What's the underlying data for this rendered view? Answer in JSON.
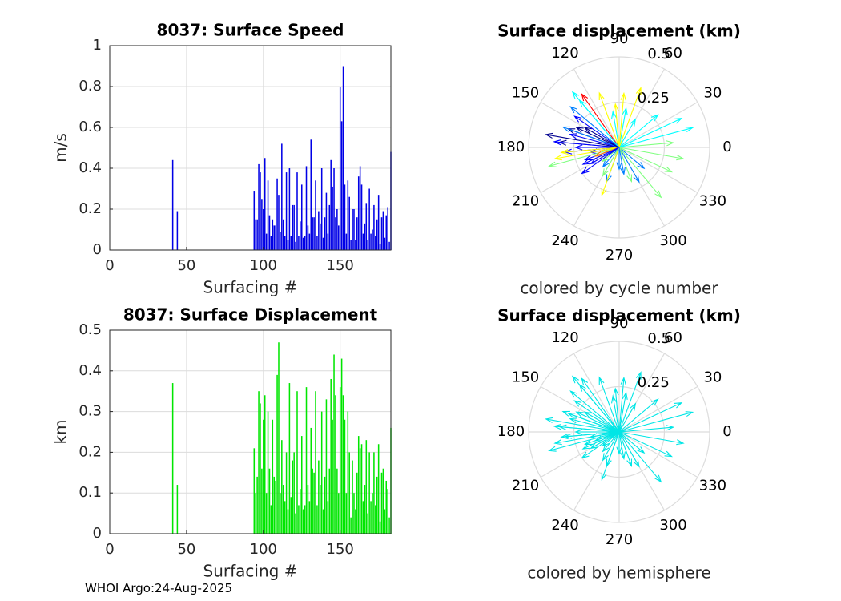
{
  "figure": {
    "footer": "WHOI Argo:24-Aug-2025"
  },
  "chart_data": [
    {
      "type": "bar",
      "title": "8037: Surface Speed",
      "xlabel": "Surfacing #",
      "ylabel": "m/s",
      "xlim": [
        0,
        183
      ],
      "ylim": [
        0,
        1
      ],
      "xticks": [
        0,
        50,
        100,
        150
      ],
      "yticks": [
        0,
        0.2,
        0.4,
        0.6,
        0.8,
        1
      ],
      "ytick_labels": [
        "0",
        "0.2",
        "0.4",
        "0.6",
        "0.8",
        "1"
      ],
      "grid": true,
      "color": "#0000e6",
      "x": [
        41,
        44,
        94,
        95,
        96,
        97,
        98,
        99,
        100,
        101,
        102,
        103,
        104,
        105,
        106,
        107,
        108,
        109,
        110,
        111,
        112,
        113,
        114,
        115,
        116,
        117,
        118,
        119,
        120,
        121,
        122,
        123,
        124,
        125,
        126,
        127,
        128,
        129,
        130,
        131,
        132,
        133,
        134,
        135,
        136,
        137,
        138,
        139,
        140,
        141,
        142,
        143,
        144,
        145,
        146,
        147,
        148,
        149,
        150,
        151,
        152,
        153,
        154,
        155,
        156,
        157,
        158,
        159,
        160,
        161,
        162,
        163,
        164,
        165,
        166,
        167,
        168,
        169,
        170,
        171,
        172,
        173,
        174,
        175,
        176,
        177,
        178,
        179,
        180,
        181,
        182,
        183
      ],
      "values": [
        0.44,
        0.19,
        0.29,
        0.15,
        0.15,
        0.42,
        0.38,
        0.25,
        0.2,
        0.45,
        0.08,
        0.34,
        0.17,
        0.07,
        0.15,
        0.12,
        0.12,
        0.35,
        0.27,
        0.09,
        0.52,
        0.15,
        0.07,
        0.38,
        0.05,
        0.4,
        0.07,
        0.22,
        0.22,
        0.04,
        0.38,
        0.07,
        0.14,
        0.32,
        0.06,
        0.07,
        0.41,
        0.12,
        0.08,
        0.54,
        0.16,
        0.16,
        0.34,
        0.07,
        0.19,
        0.13,
        0.4,
        0.06,
        0.16,
        0.28,
        0.08,
        0.22,
        0.44,
        0.31,
        0.4,
        0.16,
        0.2,
        0.12,
        0.8,
        0.63,
        0.9,
        0.32,
        0.08,
        0.34,
        0.26,
        0.05,
        0.2,
        0.2,
        0.05,
        0.16,
        0.36,
        0.41,
        0.32,
        0.08,
        0.13,
        0.23,
        0.05,
        0.3,
        0.08,
        0.1,
        0.22,
        0.07,
        0.15,
        0.27,
        0.03,
        0.16,
        0.19,
        0.06,
        0.17,
        0.21,
        0.04,
        0.48
      ]
    },
    {
      "type": "bar",
      "title": "8037: Surface Displacement",
      "xlabel": "Surfacing #",
      "ylabel": "km",
      "xlim": [
        0,
        183
      ],
      "ylim": [
        0,
        0.5
      ],
      "xticks": [
        0,
        50,
        100,
        150
      ],
      "yticks": [
        0,
        0.1,
        0.2,
        0.3,
        0.4,
        0.5
      ],
      "ytick_labels": [
        "0",
        "0.1",
        "0.2",
        "0.3",
        "0.4",
        "0.5"
      ],
      "grid": true,
      "color": "#00e600",
      "x": [
        41,
        44,
        94,
        95,
        96,
        97,
        98,
        99,
        100,
        101,
        102,
        103,
        104,
        105,
        106,
        107,
        108,
        109,
        110,
        111,
        112,
        113,
        114,
        115,
        116,
        117,
        118,
        119,
        120,
        121,
        122,
        123,
        124,
        125,
        126,
        127,
        128,
        129,
        130,
        131,
        132,
        133,
        134,
        135,
        136,
        137,
        138,
        139,
        140,
        141,
        142,
        143,
        144,
        145,
        146,
        147,
        148,
        149,
        150,
        151,
        152,
        153,
        154,
        155,
        156,
        157,
        158,
        159,
        160,
        161,
        162,
        163,
        164,
        165,
        166,
        167,
        168,
        169,
        170,
        171,
        172,
        173,
        174,
        175,
        176,
        177,
        178,
        179,
        180,
        181,
        182,
        183
      ],
      "values": [
        0.37,
        0.12,
        0.21,
        0.1,
        0.14,
        0.35,
        0.32,
        0.16,
        0.28,
        0.34,
        0.1,
        0.3,
        0.16,
        0.07,
        0.28,
        0.14,
        0.13,
        0.39,
        0.47,
        0.1,
        0.23,
        0.12,
        0.08,
        0.2,
        0.06,
        0.37,
        0.09,
        0.18,
        0.2,
        0.05,
        0.35,
        0.07,
        0.11,
        0.24,
        0.06,
        0.07,
        0.36,
        0.12,
        0.08,
        0.26,
        0.16,
        0.15,
        0.35,
        0.07,
        0.18,
        0.12,
        0.3,
        0.06,
        0.14,
        0.33,
        0.08,
        0.16,
        0.38,
        0.28,
        0.44,
        0.34,
        0.16,
        0.1,
        0.36,
        0.43,
        0.34,
        0.28,
        0.1,
        0.3,
        0.2,
        0.04,
        0.18,
        0.1,
        0.06,
        0.15,
        0.24,
        0.21,
        0.22,
        0.08,
        0.12,
        0.23,
        0.05,
        0.2,
        0.08,
        0.1,
        0.2,
        0.07,
        0.14,
        0.22,
        0.03,
        0.15,
        0.16,
        0.06,
        0.13,
        0.11,
        0.04,
        0.26
      ]
    },
    {
      "type": "polar-compass",
      "title": "Surface displacement (km)",
      "caption": "colored by cycle number",
      "rlim": [
        0,
        0.5
      ],
      "rticks": [
        0.25,
        0.5
      ],
      "rtick_labels": [
        "0.25",
        "0.5"
      ],
      "angle_ticks": [
        0,
        30,
        60,
        90,
        120,
        150,
        180,
        210,
        240,
        270,
        300,
        330
      ],
      "angle_labels": [
        "0",
        "30",
        "60",
        "90",
        "120",
        "150",
        "180",
        "210",
        "240",
        "270",
        "300",
        "330"
      ],
      "colormap": [
        "#00008f",
        "#0000ff",
        "#0080ff",
        "#00ffff",
        "#80ff80",
        "#ffff00",
        "#ff8000",
        "#ff0000"
      ],
      "vectors": [
        {
          "angle": 170,
          "r": 0.41,
          "c": 0.0
        },
        {
          "angle": 160,
          "r": 0.3,
          "c": 0.02
        },
        {
          "angle": 175,
          "r": 0.33,
          "c": 0.04
        },
        {
          "angle": 150,
          "r": 0.22,
          "c": 0.06
        },
        {
          "angle": 200,
          "r": 0.2,
          "c": 0.08
        },
        {
          "angle": 185,
          "r": 0.3,
          "c": 0.1
        },
        {
          "angle": 165,
          "r": 0.28,
          "c": 0.12
        },
        {
          "angle": 180,
          "r": 0.24,
          "c": 0.14
        },
        {
          "angle": 145,
          "r": 0.3,
          "c": 0.16
        },
        {
          "angle": 190,
          "r": 0.16,
          "c": 0.18
        },
        {
          "angle": 210,
          "r": 0.18,
          "c": 0.2
        },
        {
          "angle": 230,
          "r": 0.14,
          "c": 0.22
        },
        {
          "angle": 250,
          "r": 0.2,
          "c": 0.24
        },
        {
          "angle": 270,
          "r": 0.12,
          "c": 0.26
        },
        {
          "angle": 300,
          "r": 0.22,
          "c": 0.28
        },
        {
          "angle": 320,
          "r": 0.18,
          "c": 0.3
        },
        {
          "angle": 140,
          "r": 0.35,
          "c": 0.32
        },
        {
          "angle": 160,
          "r": 0.33,
          "c": 0.34
        },
        {
          "angle": 130,
          "r": 0.34,
          "c": 0.36
        },
        {
          "angle": 100,
          "r": 0.2,
          "c": 0.38
        },
        {
          "angle": 80,
          "r": 0.22,
          "c": 0.4
        },
        {
          "angle": 60,
          "r": 0.18,
          "c": 0.42
        },
        {
          "angle": 40,
          "r": 0.28,
          "c": 0.44
        },
        {
          "angle": 25,
          "r": 0.38,
          "c": 0.46
        },
        {
          "angle": 15,
          "r": 0.42,
          "c": 0.48
        },
        {
          "angle": 5,
          "r": 0.3,
          "c": 0.5
        },
        {
          "angle": 350,
          "r": 0.36,
          "c": 0.52
        },
        {
          "angle": 335,
          "r": 0.32,
          "c": 0.54
        },
        {
          "angle": 310,
          "r": 0.36,
          "c": 0.56
        },
        {
          "angle": 290,
          "r": 0.2,
          "c": 0.58
        },
        {
          "angle": 240,
          "r": 0.18,
          "c": 0.6
        },
        {
          "angle": 220,
          "r": 0.12,
          "c": 0.62
        },
        {
          "angle": 195,
          "r": 0.4,
          "c": 0.64
        },
        {
          "angle": 190,
          "r": 0.36,
          "c": 0.66
        },
        {
          "angle": 185,
          "r": 0.32,
          "c": 0.68
        },
        {
          "angle": 70,
          "r": 0.35,
          "c": 0.7
        },
        {
          "angle": 85,
          "r": 0.3,
          "c": 0.72
        },
        {
          "angle": 95,
          "r": 0.24,
          "c": 0.74
        },
        {
          "angle": 110,
          "r": 0.32,
          "c": 0.76
        },
        {
          "angle": 250,
          "r": 0.28,
          "c": 0.78
        },
        {
          "angle": 200,
          "r": 0.14,
          "c": 0.8
        },
        {
          "angle": 125,
          "r": 0.36,
          "c": 0.96
        },
        {
          "angle": 175,
          "r": 0.36,
          "c": 0.08
        },
        {
          "angle": 155,
          "r": 0.26,
          "c": 0.03
        },
        {
          "angle": 205,
          "r": 0.22,
          "c": 0.15
        },
        {
          "angle": 215,
          "r": 0.25,
          "c": 0.2
        },
        {
          "angle": 280,
          "r": 0.15,
          "c": 0.25
        },
        {
          "angle": 130,
          "r": 0.4,
          "c": 0.38
        }
      ]
    },
    {
      "type": "polar-compass",
      "title": "Surface displacement (km)",
      "caption": "colored by hemisphere",
      "rlim": [
        0,
        0.5
      ],
      "rticks": [
        0.25,
        0.5
      ],
      "rtick_labels": [
        "0.25",
        "0.5"
      ],
      "angle_ticks": [
        0,
        30,
        60,
        90,
        120,
        150,
        180,
        210,
        240,
        270,
        300,
        330
      ],
      "angle_labels": [
        "0",
        "30",
        "60",
        "90",
        "120",
        "150",
        "180",
        "210",
        "240",
        "270",
        "300",
        "330"
      ],
      "color": "#00e6e6",
      "vectors": [
        {
          "angle": 170,
          "r": 0.41
        },
        {
          "angle": 160,
          "r": 0.3
        },
        {
          "angle": 175,
          "r": 0.33
        },
        {
          "angle": 150,
          "r": 0.22
        },
        {
          "angle": 200,
          "r": 0.2
        },
        {
          "angle": 185,
          "r": 0.3
        },
        {
          "angle": 165,
          "r": 0.28
        },
        {
          "angle": 180,
          "r": 0.24
        },
        {
          "angle": 145,
          "r": 0.3
        },
        {
          "angle": 190,
          "r": 0.16
        },
        {
          "angle": 210,
          "r": 0.18
        },
        {
          "angle": 230,
          "r": 0.14
        },
        {
          "angle": 250,
          "r": 0.2
        },
        {
          "angle": 270,
          "r": 0.12
        },
        {
          "angle": 300,
          "r": 0.22
        },
        {
          "angle": 320,
          "r": 0.18
        },
        {
          "angle": 140,
          "r": 0.35
        },
        {
          "angle": 160,
          "r": 0.33
        },
        {
          "angle": 130,
          "r": 0.34
        },
        {
          "angle": 100,
          "r": 0.2
        },
        {
          "angle": 80,
          "r": 0.22
        },
        {
          "angle": 60,
          "r": 0.18
        },
        {
          "angle": 40,
          "r": 0.28
        },
        {
          "angle": 25,
          "r": 0.38
        },
        {
          "angle": 15,
          "r": 0.42
        },
        {
          "angle": 5,
          "r": 0.3
        },
        {
          "angle": 350,
          "r": 0.36
        },
        {
          "angle": 335,
          "r": 0.32
        },
        {
          "angle": 310,
          "r": 0.36
        },
        {
          "angle": 290,
          "r": 0.2
        },
        {
          "angle": 240,
          "r": 0.18
        },
        {
          "angle": 220,
          "r": 0.12
        },
        {
          "angle": 195,
          "r": 0.4
        },
        {
          "angle": 190,
          "r": 0.36
        },
        {
          "angle": 185,
          "r": 0.32
        },
        {
          "angle": 70,
          "r": 0.35
        },
        {
          "angle": 85,
          "r": 0.3
        },
        {
          "angle": 95,
          "r": 0.24
        },
        {
          "angle": 110,
          "r": 0.32
        },
        {
          "angle": 250,
          "r": 0.28
        },
        {
          "angle": 200,
          "r": 0.14
        },
        {
          "angle": 125,
          "r": 0.36
        },
        {
          "angle": 175,
          "r": 0.36
        },
        {
          "angle": 155,
          "r": 0.26
        },
        {
          "angle": 205,
          "r": 0.22
        },
        {
          "angle": 215,
          "r": 0.25
        },
        {
          "angle": 280,
          "r": 0.15
        },
        {
          "angle": 130,
          "r": 0.4
        }
      ]
    }
  ]
}
